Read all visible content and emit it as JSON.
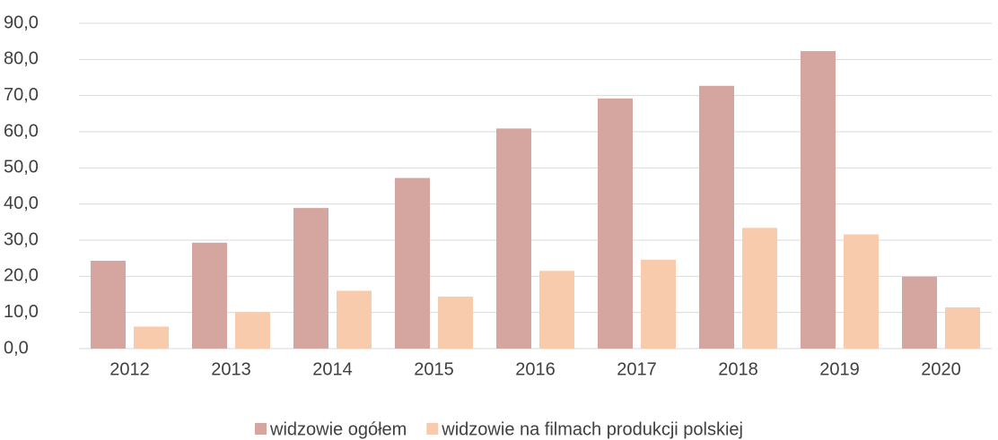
{
  "chart_data": {
    "type": "bar",
    "categories": [
      "2012",
      "2013",
      "2014",
      "2015",
      "2016",
      "2017",
      "2018",
      "2019",
      "2020"
    ],
    "series": [
      {
        "name": "widzowie ogółem",
        "color": "#d5a6a0",
        "values": [
          24.3,
          29.3,
          38.9,
          47.2,
          60.9,
          69.2,
          72.7,
          82.3,
          19.9
        ]
      },
      {
        "name": "widzowie na filmach produkcji polskiej",
        "color": "#f8cbad",
        "values": [
          6.1,
          10.1,
          16.0,
          14.4,
          21.5,
          24.6,
          33.4,
          31.6,
          11.4
        ]
      }
    ],
    "ylim": [
      0,
      90
    ],
    "yticks": [
      {
        "value": 0,
        "label": "0,0"
      },
      {
        "value": 10,
        "label": "10,0"
      },
      {
        "value": 20,
        "label": "20,0"
      },
      {
        "value": 30,
        "label": "30,0"
      },
      {
        "value": 40,
        "label": "40,0"
      },
      {
        "value": 50,
        "label": "50,0"
      },
      {
        "value": 60,
        "label": "60,0"
      },
      {
        "value": 70,
        "label": "70,0"
      },
      {
        "value": 80,
        "label": "80,0"
      },
      {
        "value": 90,
        "label": "90,0"
      }
    ],
    "grid": true,
    "legend": "bottom"
  }
}
